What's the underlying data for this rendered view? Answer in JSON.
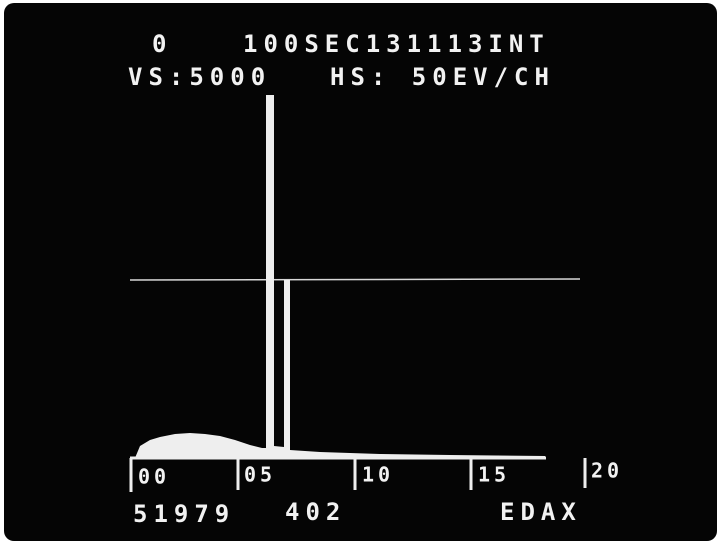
{
  "header": {
    "counter": "0",
    "status": "100SEC131113INT",
    "vertical_scale": "VS:5000",
    "horizontal_scale": "HS: 50EV/CH"
  },
  "axis": {
    "ticks": [
      "00",
      "05",
      "10",
      "15",
      "20"
    ]
  },
  "footer": {
    "total_counts": "51979",
    "cursor_counts": "402",
    "brand": "EDAX"
  }
}
